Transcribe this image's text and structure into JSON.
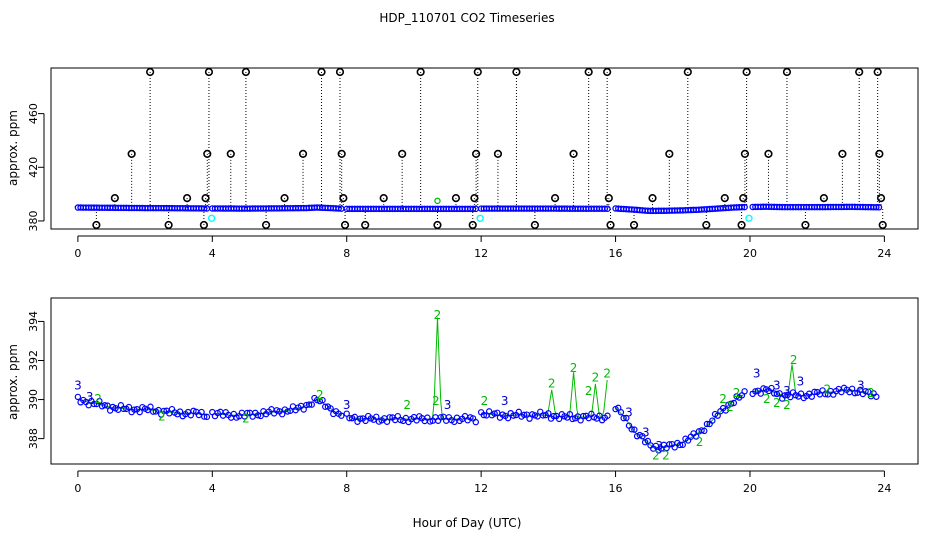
{
  "title": "HDP_110701  CO2 Timeseries",
  "colors": {
    "main": "#0000ff",
    "flag2": "#00bb00",
    "flag3": "#0000cc",
    "outlier": "#000000",
    "cyan": "#00ffff"
  },
  "chart_data": [
    {
      "type": "scatter",
      "ylabel": "approx. ppm",
      "xlabel": "",
      "xlim": [
        -0.8,
        25
      ],
      "ylim": [
        374,
        494
      ],
      "xticks": [
        0,
        4,
        8,
        12,
        16,
        20,
        24
      ],
      "yticks": [
        380,
        420,
        460
      ],
      "grid": false,
      "legend": "none",
      "baseline": [
        [
          0.0,
          390.0
        ],
        [
          1.0,
          389.8
        ],
        [
          2.0,
          389.6
        ],
        [
          3.0,
          389.5
        ],
        [
          3.8,
          389.3
        ],
        [
          4.0,
          389.3
        ],
        [
          5.0,
          389.2
        ],
        [
          6.0,
          389.4
        ],
        [
          6.8,
          389.6
        ],
        [
          7.1,
          390.0
        ],
        [
          7.5,
          389.6
        ],
        [
          7.8,
          389.2
        ],
        [
          8.0,
          389.0
        ],
        [
          9.0,
          389.0
        ],
        [
          10.0,
          389.0
        ],
        [
          11.0,
          389.0
        ],
        [
          11.8,
          389.0
        ],
        [
          12.0,
          389.2
        ],
        [
          13.0,
          389.2
        ],
        [
          14.0,
          389.2
        ],
        [
          15.0,
          389.1
        ],
        [
          15.8,
          389.1
        ],
        [
          16.0,
          389.3
        ],
        [
          16.5,
          388.5
        ],
        [
          17.0,
          387.5
        ],
        [
          17.5,
          387.6
        ],
        [
          18.0,
          387.9
        ],
        [
          18.5,
          388.4
        ],
        [
          19.0,
          389.2
        ],
        [
          19.5,
          390.0
        ],
        [
          19.9,
          390.4
        ],
        [
          20.0,
          390.4
        ],
        [
          20.5,
          390.6
        ],
        [
          21.0,
          390.3
        ],
        [
          22.0,
          390.3
        ],
        [
          23.0,
          390.5
        ],
        [
          23.8,
          390.2
        ]
      ],
      "gaps": [
        [
          3.85,
          4.0
        ],
        [
          7.85,
          8.0
        ],
        [
          11.85,
          12.0
        ],
        [
          15.8,
          16.0
        ],
        [
          19.85,
          20.0
        ]
      ],
      "outliers": [
        [
          0.55,
          377
        ],
        [
          1.1,
          397
        ],
        [
          1.6,
          430
        ],
        [
          2.15,
          491
        ],
        [
          2.7,
          377
        ],
        [
          3.25,
          397
        ],
        [
          3.75,
          377
        ],
        [
          3.8,
          397
        ],
        [
          3.85,
          430
        ],
        [
          3.9,
          491
        ],
        [
          4.55,
          430
        ],
        [
          5.0,
          491
        ],
        [
          5.6,
          377
        ],
        [
          6.15,
          397
        ],
        [
          6.7,
          430
        ],
        [
          7.25,
          491
        ],
        [
          7.8,
          491
        ],
        [
          7.85,
          430
        ],
        [
          7.9,
          397
        ],
        [
          7.95,
          377
        ],
        [
          8.55,
          377
        ],
        [
          9.1,
          397
        ],
        [
          9.65,
          430
        ],
        [
          10.2,
          491
        ],
        [
          10.7,
          377
        ],
        [
          11.25,
          397
        ],
        [
          11.75,
          377
        ],
        [
          11.8,
          397
        ],
        [
          11.85,
          430
        ],
        [
          11.9,
          491
        ],
        [
          12.5,
          430
        ],
        [
          13.05,
          491
        ],
        [
          13.6,
          377
        ],
        [
          14.2,
          397
        ],
        [
          14.75,
          430
        ],
        [
          15.2,
          491
        ],
        [
          15.75,
          491
        ],
        [
          15.8,
          397
        ],
        [
          15.85,
          377
        ],
        [
          16.55,
          377
        ],
        [
          17.1,
          397
        ],
        [
          17.6,
          430
        ],
        [
          18.15,
          491
        ],
        [
          18.7,
          377
        ],
        [
          19.25,
          397
        ],
        [
          19.75,
          377
        ],
        [
          19.8,
          397
        ],
        [
          19.85,
          430
        ],
        [
          19.9,
          491
        ],
        [
          20.55,
          430
        ],
        [
          21.1,
          491
        ],
        [
          21.65,
          377
        ],
        [
          22.2,
          397
        ],
        [
          22.75,
          430
        ],
        [
          23.25,
          491
        ],
        [
          23.8,
          491
        ],
        [
          23.85,
          430
        ],
        [
          23.9,
          397
        ],
        [
          23.95,
          377
        ]
      ],
      "cyan_points": [
        [
          3.98,
          382
        ],
        [
          11.97,
          382
        ],
        [
          19.97,
          382
        ]
      ],
      "green_points": [
        [
          10.7,
          395
        ]
      ]
    },
    {
      "type": "scatter",
      "ylabel": "approx. ppm",
      "xlabel": "Hour of Day (UTC)",
      "xlim": [
        -0.8,
        25
      ],
      "ylim": [
        386.7,
        395.2
      ],
      "xticks": [
        0,
        4,
        8,
        12,
        16,
        20,
        24
      ],
      "yticks": [
        388,
        390,
        392,
        394
      ],
      "grid": false,
      "legend": "none",
      "baseline": [
        [
          0.0,
          390.0
        ],
        [
          0.5,
          389.8
        ],
        [
          1.0,
          389.6
        ],
        [
          1.5,
          389.5
        ],
        [
          2.0,
          389.5
        ],
        [
          2.5,
          389.4
        ],
        [
          3.0,
          389.3
        ],
        [
          3.5,
          389.3
        ],
        [
          3.8,
          389.2
        ],
        [
          4.0,
          389.3
        ],
        [
          4.5,
          389.2
        ],
        [
          5.0,
          389.2
        ],
        [
          5.5,
          389.3
        ],
        [
          6.0,
          389.4
        ],
        [
          6.5,
          389.5
        ],
        [
          6.8,
          389.7
        ],
        [
          7.1,
          390.0
        ],
        [
          7.4,
          389.7
        ],
        [
          7.7,
          389.3
        ],
        [
          7.85,
          389.2
        ],
        [
          8.0,
          389.1
        ],
        [
          8.5,
          389.0
        ],
        [
          9.0,
          389.0
        ],
        [
          9.5,
          389.0
        ],
        [
          10.0,
          389.0
        ],
        [
          10.5,
          389.0
        ],
        [
          11.0,
          389.0
        ],
        [
          11.5,
          389.0
        ],
        [
          11.85,
          389.0
        ],
        [
          12.0,
          389.3
        ],
        [
          12.5,
          389.2
        ],
        [
          13.0,
          389.2
        ],
        [
          13.5,
          389.2
        ],
        [
          14.0,
          389.2
        ],
        [
          14.5,
          389.1
        ],
        [
          15.0,
          389.1
        ],
        [
          15.5,
          389.1
        ],
        [
          15.8,
          389.1
        ],
        [
          16.0,
          389.6
        ],
        [
          16.3,
          389.0
        ],
        [
          16.6,
          388.3
        ],
        [
          17.0,
          387.7
        ],
        [
          17.3,
          387.5
        ],
        [
          17.6,
          387.6
        ],
        [
          18.0,
          387.8
        ],
        [
          18.4,
          388.2
        ],
        [
          18.8,
          388.8
        ],
        [
          19.2,
          389.5
        ],
        [
          19.5,
          389.9
        ],
        [
          19.85,
          390.3
        ],
        [
          20.0,
          390.4
        ],
        [
          20.5,
          390.5
        ],
        [
          21.0,
          390.2
        ],
        [
          21.5,
          390.2
        ],
        [
          22.0,
          390.3
        ],
        [
          22.5,
          390.4
        ],
        [
          23.0,
          390.5
        ],
        [
          23.5,
          390.3
        ],
        [
          23.8,
          390.2
        ]
      ],
      "gaps": [
        [
          3.85,
          4.0
        ],
        [
          7.85,
          8.0
        ],
        [
          11.85,
          12.0
        ],
        [
          15.8,
          16.0
        ],
        [
          19.85,
          20.0
        ]
      ],
      "spikes": [
        [
          10.7,
          394.2
        ],
        [
          14.1,
          390.5
        ],
        [
          14.75,
          391.4
        ],
        [
          15.4,
          390.8
        ],
        [
          15.75,
          391.0
        ],
        [
          21.25,
          391.8
        ]
      ],
      "label_2": [
        [
          10.7,
          394.3
        ],
        [
          10.65,
          389.9
        ],
        [
          9.8,
          389.7
        ],
        [
          12.1,
          389.9
        ],
        [
          14.1,
          390.8
        ],
        [
          14.75,
          391.6
        ],
        [
          15.4,
          391.1
        ],
        [
          15.75,
          391.3
        ],
        [
          15.2,
          390.4
        ],
        [
          17.2,
          387.1
        ],
        [
          17.5,
          387.1
        ],
        [
          18.5,
          387.8
        ],
        [
          19.4,
          389.6
        ],
        [
          19.2,
          390.0
        ],
        [
          19.6,
          390.3
        ],
        [
          20.5,
          390.0
        ],
        [
          20.8,
          389.8
        ],
        [
          21.1,
          389.7
        ],
        [
          21.3,
          392.0
        ],
        [
          22.3,
          390.5
        ],
        [
          23.6,
          390.3
        ],
        [
          0.6,
          390.0
        ],
        [
          2.5,
          389.1
        ],
        [
          5.0,
          389.0
        ],
        [
          7.2,
          390.2
        ]
      ],
      "label_3": [
        [
          0.0,
          390.7
        ],
        [
          0.35,
          390.1
        ],
        [
          12.7,
          389.9
        ],
        [
          11.0,
          389.7
        ],
        [
          8.0,
          389.7
        ],
        [
          16.4,
          389.3
        ],
        [
          16.9,
          388.3
        ],
        [
          17.3,
          387.6
        ],
        [
          20.2,
          391.3
        ],
        [
          20.8,
          390.7
        ],
        [
          21.5,
          390.9
        ],
        [
          21.1,
          390.4
        ],
        [
          23.3,
          390.7
        ]
      ]
    }
  ]
}
